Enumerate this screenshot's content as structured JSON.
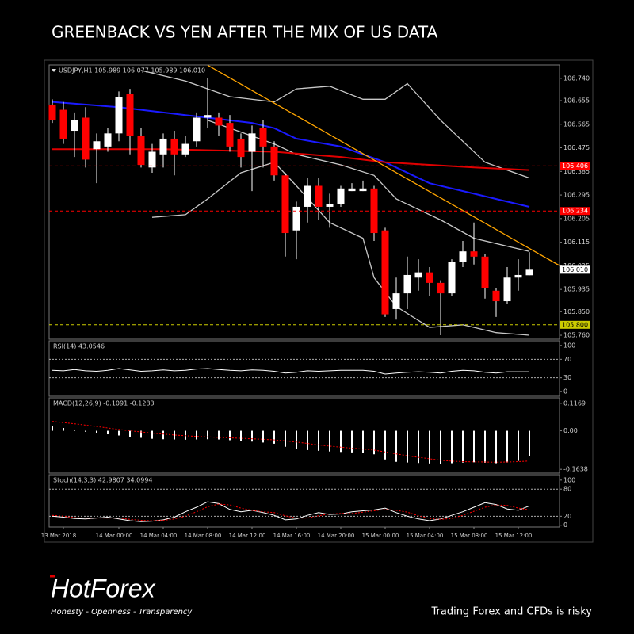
{
  "page": {
    "title": "GREENBACK VS YEN AFTER THE MIX OF US DATA"
  },
  "footer": {
    "logo": "HotForex",
    "tagline": "Honesty - Openness - Transparency",
    "disclaimer": "Trading Forex and CFDs is risky"
  },
  "chart_data": [
    {
      "type": "candlestick",
      "title": "USDJPY,H1  105.989 106.077 105.989 106.010",
      "categories": [
        null,
        "13 Mar 2018",
        null,
        null,
        null,
        null,
        "14 Mar 00:00",
        null,
        null,
        null,
        "14 Mar 04:00",
        null,
        null,
        null,
        "14 Mar 08:00",
        null,
        null,
        null,
        "14 Mar 12:00",
        null,
        null,
        null,
        "14 Mar 16:00",
        null,
        null,
        null,
        "14 Mar 20:00",
        null,
        null,
        null,
        "15 Mar 00:00",
        null,
        null,
        null,
        "15 Mar 04:00",
        null,
        null,
        null,
        "15 Mar 08:00",
        null,
        null,
        null,
        "15 Mar 12:00",
        null
      ],
      "open": [
        106.64,
        106.62,
        106.54,
        106.59,
        106.47,
        106.48,
        106.53,
        106.68,
        106.52,
        106.4,
        106.45,
        106.51,
        106.45,
        106.5,
        106.59,
        106.59,
        106.57,
        106.51,
        106.46,
        106.55,
        106.48,
        106.37,
        106.16,
        106.25,
        106.33,
        106.25,
        106.26,
        106.31,
        106.31,
        106.32,
        106.16,
        105.86,
        105.92,
        105.98,
        106.0,
        105.96,
        105.92,
        106.04,
        106.08,
        106.06,
        105.93,
        105.89,
        105.98,
        105.989
      ],
      "high": [
        106.66,
        106.65,
        106.61,
        106.63,
        106.53,
        106.55,
        106.69,
        106.7,
        106.55,
        106.49,
        106.53,
        106.54,
        106.52,
        106.61,
        106.74,
        106.61,
        106.6,
        106.53,
        106.56,
        106.58,
        106.5,
        106.38,
        106.27,
        106.36,
        106.36,
        106.3,
        106.33,
        106.34,
        106.35,
        106.33,
        106.17,
        105.98,
        106.06,
        106.05,
        106.02,
        105.97,
        106.05,
        106.12,
        106.19,
        106.07,
        105.94,
        106.02,
        106.05,
        106.077
      ],
      "low": [
        106.57,
        106.49,
        106.44,
        106.4,
        106.34,
        106.46,
        106.5,
        106.45,
        106.4,
        106.38,
        106.4,
        106.37,
        106.44,
        106.48,
        106.55,
        106.52,
        106.46,
        106.4,
        106.31,
        106.4,
        106.35,
        106.06,
        106.05,
        106.19,
        106.2,
        106.17,
        106.25,
        106.31,
        106.31,
        106.12,
        105.83,
        105.82,
        105.86,
        105.93,
        105.91,
        105.76,
        105.91,
        106.02,
        106.03,
        105.9,
        105.83,
        105.88,
        105.93,
        105.989
      ],
      "close": [
        106.58,
        106.51,
        106.58,
        106.43,
        106.5,
        106.53,
        106.67,
        106.52,
        106.41,
        106.46,
        106.51,
        106.45,
        106.49,
        106.59,
        106.6,
        106.56,
        106.48,
        106.44,
        106.53,
        106.48,
        106.37,
        106.15,
        106.25,
        106.33,
        106.25,
        106.26,
        106.32,
        106.32,
        106.32,
        106.15,
        105.84,
        105.92,
        105.99,
        106.0,
        105.96,
        105.92,
        106.04,
        106.08,
        106.06,
        105.94,
        105.89,
        105.98,
        105.99,
        106.01
      ],
      "color_up": "#ffffff",
      "color_down": "#ff0000",
      "lines": [
        {
          "color": "#c8c8c8",
          "x": [
            8,
            12,
            16,
            20,
            22,
            25,
            28,
            30,
            32,
            35,
            39,
            43
          ],
          "values": [
            106.77,
            106.73,
            106.67,
            106.65,
            106.7,
            106.71,
            106.66,
            106.66,
            106.72,
            106.58,
            106.42,
            106.36
          ]
        },
        {
          "color": "#c8c8c8",
          "x": [
            14,
            18,
            20,
            22,
            26,
            29,
            31,
            35,
            38,
            41,
            43
          ],
          "values": [
            106.58,
            106.52,
            106.49,
            106.45,
            106.41,
            106.37,
            106.28,
            106.2,
            106.13,
            106.1,
            106.08
          ]
        },
        {
          "color": "#c8c8c8",
          "x": [
            9,
            12,
            14,
            17,
            20,
            22,
            25,
            28,
            29,
            31,
            34,
            37,
            40,
            43
          ],
          "values": [
            106.21,
            106.22,
            106.28,
            106.38,
            106.42,
            106.33,
            106.19,
            106.13,
            105.98,
            105.87,
            105.79,
            105.8,
            105.77,
            105.76
          ]
        },
        {
          "color": "#1a1aff",
          "x": [
            0,
            6,
            12,
            18,
            20,
            22,
            26,
            30,
            34,
            38,
            43
          ],
          "values": [
            106.65,
            106.63,
            106.6,
            106.57,
            106.55,
            106.51,
            106.48,
            106.42,
            106.34,
            106.3,
            106.25
          ]
        },
        {
          "color": "#e00000",
          "x": [
            0,
            10,
            20,
            26,
            30,
            34,
            38,
            43
          ],
          "values": [
            106.47,
            106.47,
            106.46,
            106.44,
            106.42,
            106.41,
            106.4,
            106.39
          ]
        },
        {
          "color": "#ffa500",
          "x": [
            14,
            45.7
          ],
          "values": [
            106.79,
            106.026
          ]
        }
      ],
      "levels": [
        {
          "value": 106.406,
          "color": "#ff0000",
          "label_color": "#ffffff"
        },
        {
          "value": 106.234,
          "color": "#ff0000",
          "label_color": "#ffffff"
        },
        {
          "value": 105.8,
          "label": "105.800",
          "color": "#cccc00",
          "label_color": "#000000"
        }
      ],
      "last_price": {
        "value": 106.01,
        "label": "106.010"
      },
      "ylim": [
        105.745,
        106.791
      ],
      "yticks": [
        {
          "value": 106.74,
          "label": "106.740"
        },
        106.655,
        106.565,
        106.475,
        106.385,
        106.295,
        106.205,
        106.115,
        106.025,
        105.935,
        {
          "value": 105.85,
          "label": "105.850"
        },
        {
          "value": 105.76,
          "label": "105.760"
        }
      ]
    },
    {
      "type": "line",
      "title": "RSI(14) 43.0546",
      "ylim": [
        -10,
        110
      ],
      "yticks": [
        100,
        70,
        30,
        0
      ],
      "levels": [
        70,
        30
      ],
      "series": [
        {
          "color": "#ffffff",
          "values": [
            46,
            45,
            48,
            45,
            44,
            46,
            50,
            47,
            44,
            45,
            47,
            45,
            46,
            49,
            50,
            48,
            46,
            45,
            47,
            46,
            44,
            40,
            42,
            45,
            44,
            45,
            46,
            46,
            46,
            44,
            38,
            40,
            42,
            43,
            42,
            40,
            44,
            46,
            45,
            42,
            40,
            43,
            43,
            43.0546
          ]
        }
      ]
    },
    {
      "type": "macd",
      "title": "MACD(12,26,9) -0.1091 -0.1283",
      "ylim": [
        -0.18,
        0.14
      ],
      "yticks": [
        0.1169,
        {
          "value": 0,
          "label": "0.00"
        },
        -0.1638
      ],
      "series": [
        {
          "color": "#ffffff",
          "values": [
            0.02,
            0.012,
            0.004,
            -0.004,
            -0.01,
            -0.015,
            -0.02,
            -0.025,
            -0.03,
            -0.034,
            -0.036,
            -0.037,
            -0.038,
            -0.037,
            -0.036,
            -0.037,
            -0.04,
            -0.044,
            -0.046,
            -0.05,
            -0.055,
            -0.068,
            -0.078,
            -0.082,
            -0.085,
            -0.088,
            -0.09,
            -0.092,
            -0.094,
            -0.1,
            -0.122,
            -0.132,
            -0.135,
            -0.137,
            -0.139,
            -0.142,
            -0.138,
            -0.135,
            -0.134,
            -0.136,
            -0.138,
            -0.135,
            -0.128,
            -0.1091
          ]
        },
        {
          "color": "#ff0000",
          "dashed": true,
          "values": [
            0.04,
            0.035,
            0.03,
            0.024,
            0.018,
            0.012,
            0.006,
            0,
            -0.005,
            -0.01,
            -0.014,
            -0.018,
            -0.021,
            -0.024,
            -0.026,
            -0.028,
            -0.03,
            -0.032,
            -0.034,
            -0.036,
            -0.039,
            -0.043,
            -0.048,
            -0.054,
            -0.06,
            -0.065,
            -0.07,
            -0.074,
            -0.078,
            -0.082,
            -0.09,
            -0.098,
            -0.106,
            -0.113,
            -0.119,
            -0.125,
            -0.129,
            -0.131,
            -0.132,
            -0.133,
            -0.134,
            -0.133,
            -0.131,
            -0.1283
          ]
        }
      ]
    },
    {
      "type": "line",
      "title": "Stoch(14,3,3) 42.9807 34.0994",
      "ylim": [
        -4,
        112
      ],
      "yticks": [
        100,
        80,
        20,
        0
      ],
      "levels": [
        80,
        20
      ],
      "series": [
        {
          "color": "#ffffff",
          "values": [
            20,
            18,
            15,
            14,
            16,
            18,
            14,
            10,
            8,
            9,
            12,
            18,
            30,
            40,
            52,
            48,
            35,
            30,
            33,
            28,
            22,
            12,
            14,
            22,
            28,
            24,
            25,
            30,
            32,
            34,
            38,
            28,
            20,
            14,
            10,
            14,
            22,
            30,
            40,
            50,
            46,
            36,
            33,
            42.9807
          ]
        },
        {
          "color": "#ff0000",
          "dashed": true,
          "values": [
            22,
            20,
            17,
            16,
            16,
            16,
            16,
            13,
            11,
            10,
            11,
            14,
            20,
            30,
            41,
            47,
            45,
            38,
            33,
            30,
            28,
            21,
            16,
            16,
            21,
            25,
            26,
            26,
            29,
            32,
            35,
            33,
            29,
            21,
            15,
            13,
            15,
            22,
            31,
            40,
            45,
            44,
            38,
            34.0994
          ]
        }
      ]
    }
  ]
}
